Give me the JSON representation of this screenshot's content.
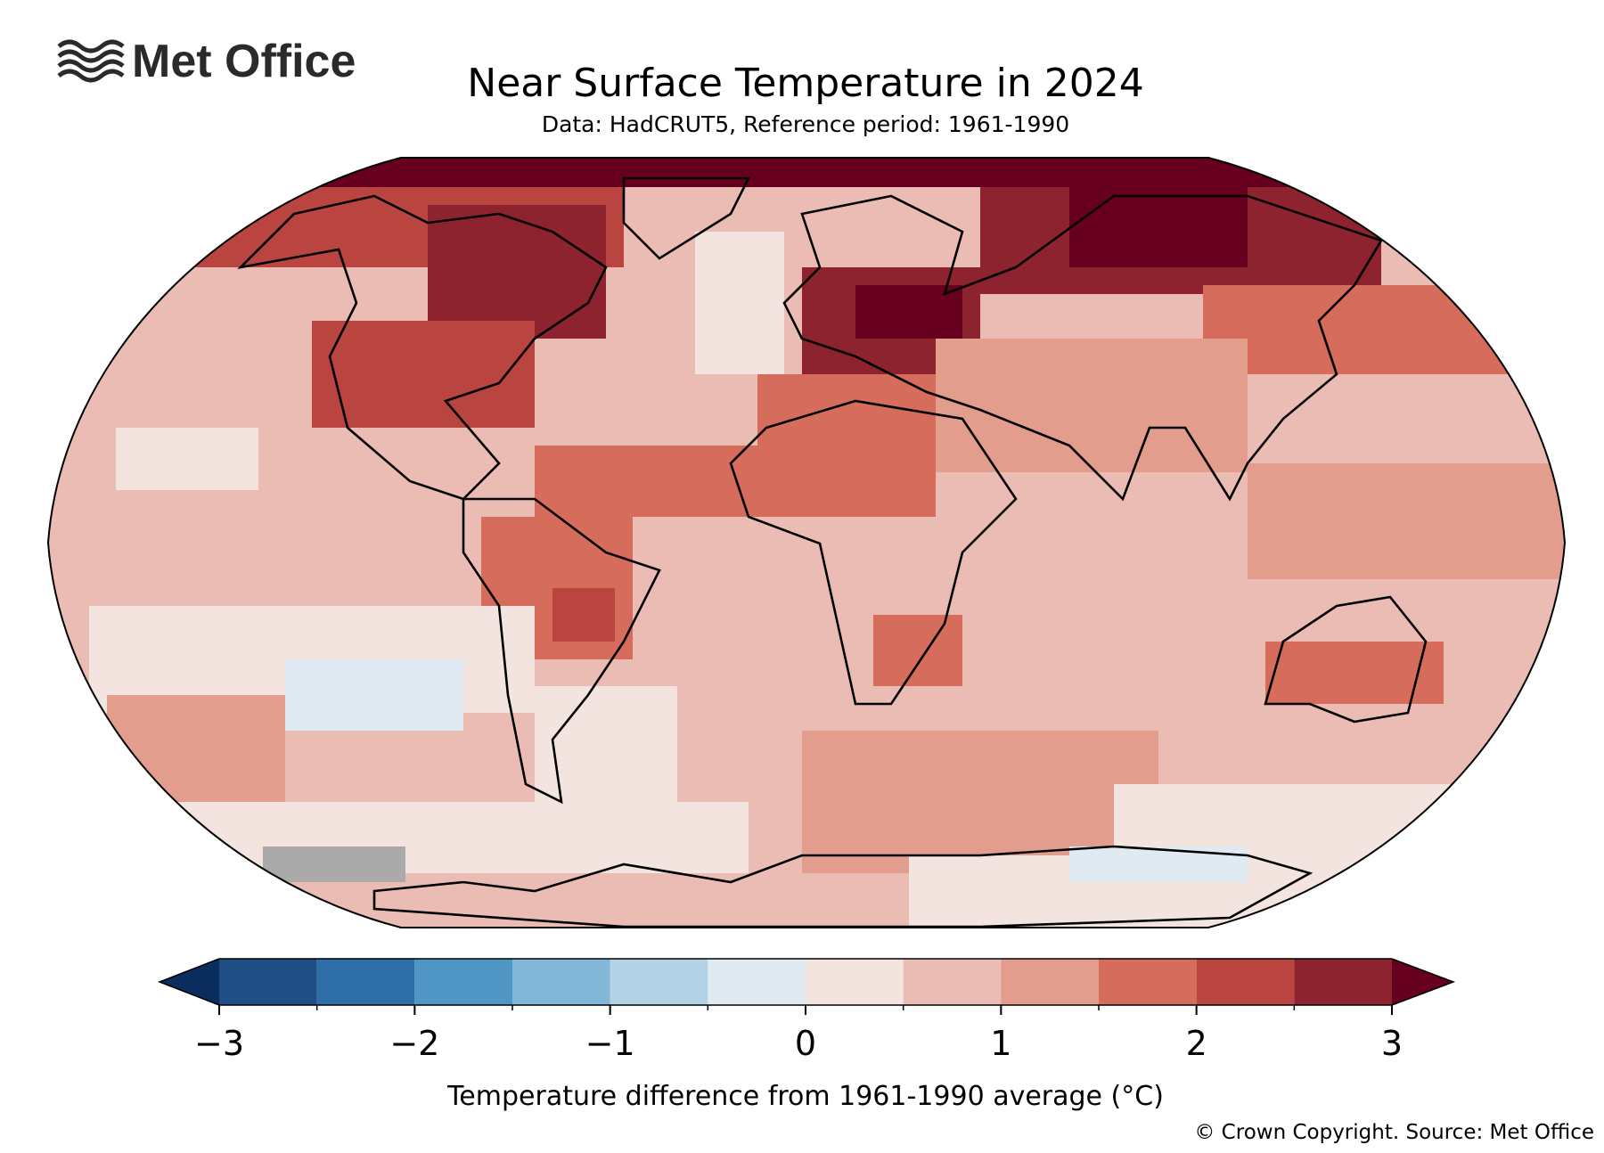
{
  "logo": "Met Office",
  "title": "Near Surface Temperature in 2024",
  "subtitle": "Data: HadCRUT5, Reference period: 1961-1990",
  "colorbar": {
    "boundaries": [
      -3,
      -2.5,
      -2,
      -1.5,
      -1,
      -0.5,
      0,
      0.5,
      1,
      1.5,
      2,
      2.5,
      3
    ],
    "colors": [
      "#1f4e85",
      "#2f6fa9",
      "#4f96c4",
      "#82b7d8",
      "#b3d2e6",
      "#dfeaf2",
      "#f4e4e0",
      "#ebbcb3",
      "#e29d8c",
      "#d66c5b",
      "#b94440",
      "#8e2330"
    ],
    "under_color": "#0b2d5e",
    "over_color": "#67001f",
    "ticks": [
      {
        "value": -3,
        "label": "−3"
      },
      {
        "value": -2,
        "label": "−2"
      },
      {
        "value": -1,
        "label": "−1"
      },
      0,
      1,
      2,
      3
    ],
    "label": "Temperature difference from 1961-1990 average (°C)"
  },
  "copyright": "© Crown Copyright. Source: Met Office"
}
